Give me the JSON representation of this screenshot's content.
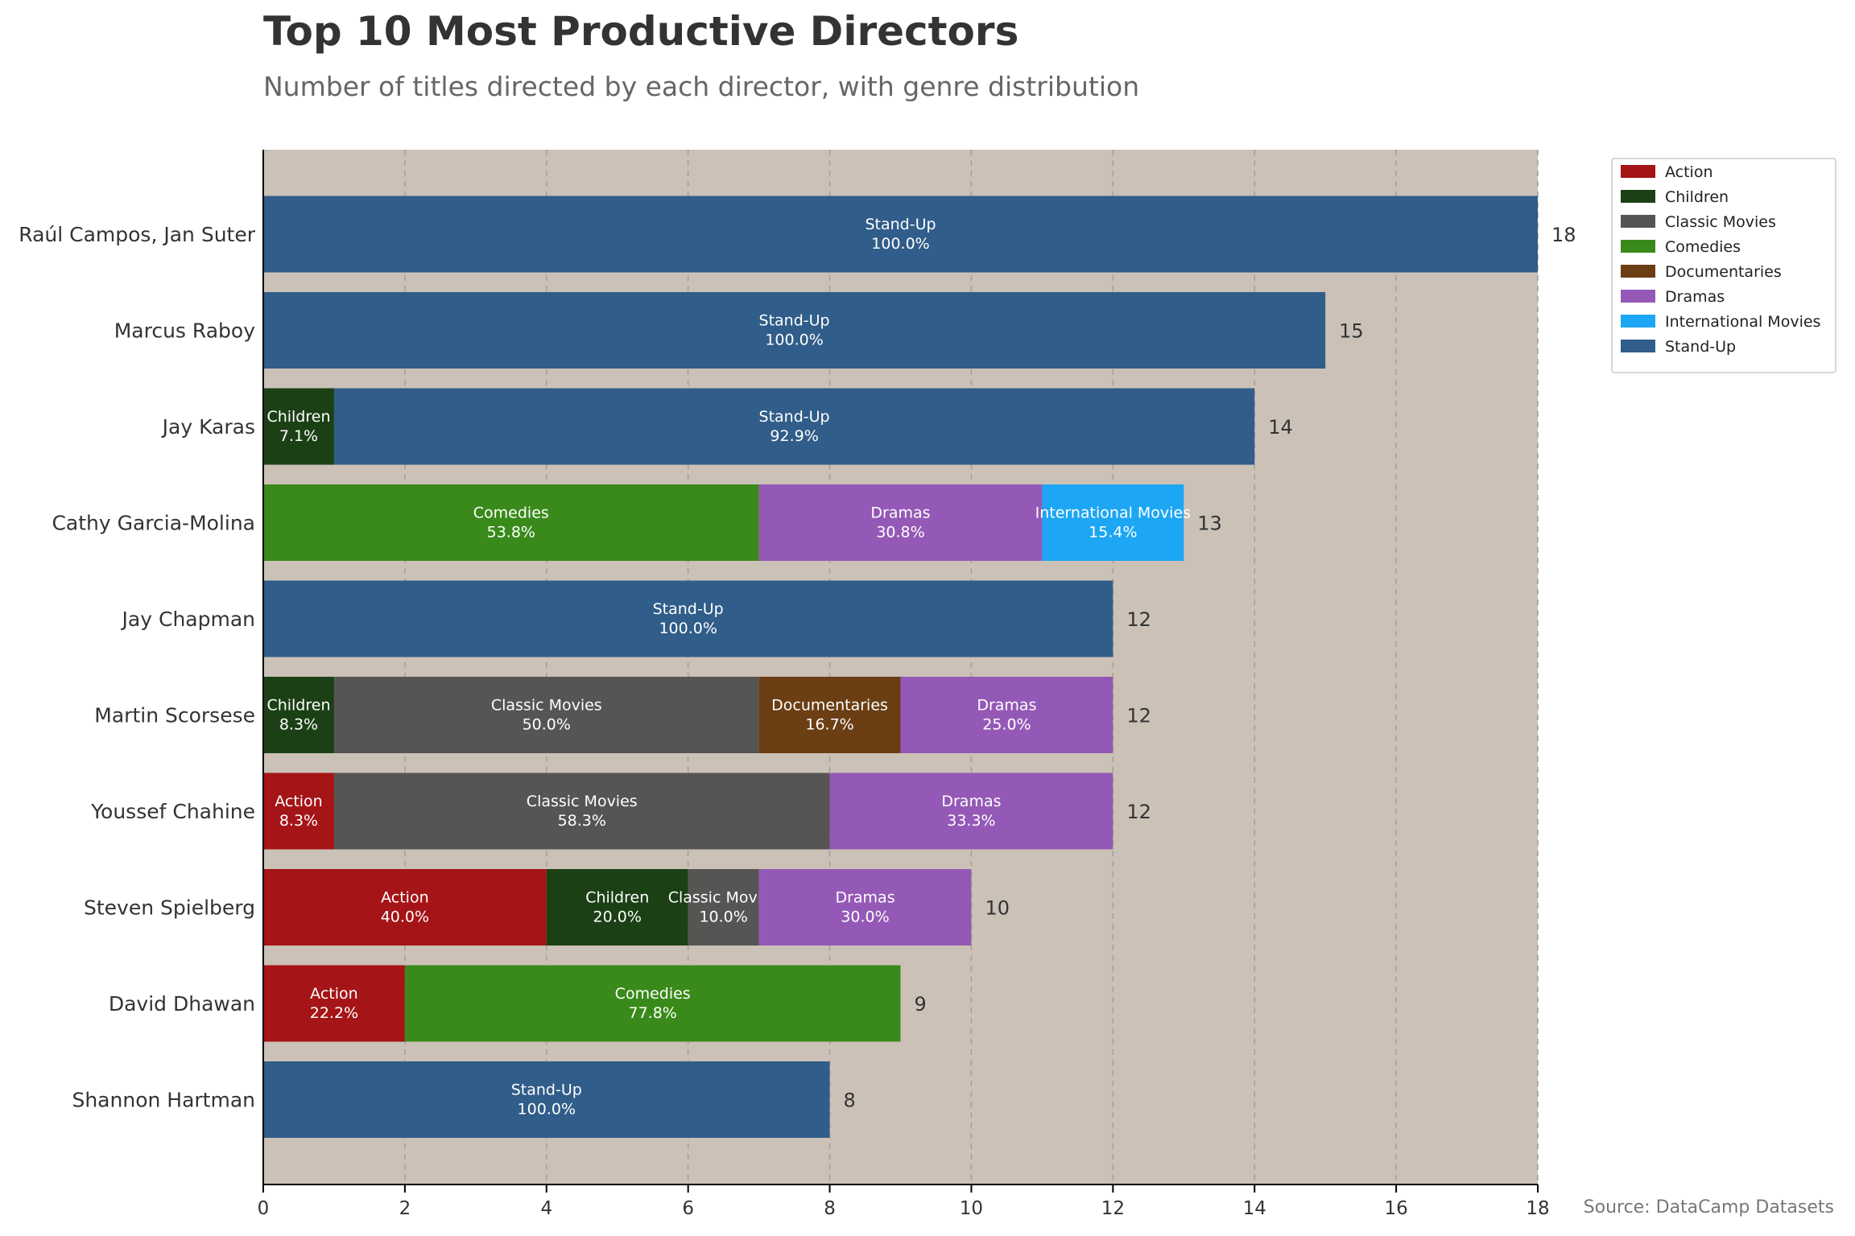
{
  "colors": {
    "plot_background": "#cbc1b7",
    "Action": "#a51416",
    "Children": "#1c4016",
    "Classic Movies": "#575553",
    "Comedies": "#398a1a",
    "Documentaries": "#6b3e14",
    "Dramas": "#9459b6",
    "International Movies": "#1da6f4",
    "Stand-Up": "#305d89"
  },
  "chart_data": {
    "type": "bar",
    "orientation": "horizontal",
    "stacked": true,
    "title": "Top 10 Most Productive Directors",
    "subtitle": "Number of titles directed by each director, with genre distribution",
    "source": "Source: DataCamp Datasets",
    "xlim": [
      0,
      18
    ],
    "xticks": [
      0,
      2,
      4,
      6,
      8,
      10,
      12,
      14,
      16,
      18
    ],
    "grid": "vertical dashed",
    "legend_placement": "top-right outside",
    "legend": [
      "Action",
      "Children",
      "Classic Movies",
      "Comedies",
      "Documentaries",
      "Dramas",
      "International Movies",
      "Stand-Up"
    ],
    "categories": [
      "Raúl Campos, Jan Suter",
      "Marcus Raboy",
      "Jay Karas",
      "Cathy Garcia-Molina",
      "Jay Chapman",
      "Martin Scorsese",
      "Youssef Chahine",
      "Steven Spielberg",
      "David Dhawan",
      "Shannon Hartman"
    ],
    "totals": [
      18,
      15,
      14,
      13,
      12,
      12,
      12,
      10,
      9,
      8
    ],
    "rows": [
      {
        "director": "Raúl Campos, Jan Suter",
        "segments": [
          {
            "genre": "Stand-Up",
            "value": 18,
            "pct": "100.0%"
          }
        ]
      },
      {
        "director": "Marcus Raboy",
        "segments": [
          {
            "genre": "Stand-Up",
            "value": 15,
            "pct": "100.0%"
          }
        ]
      },
      {
        "director": "Jay Karas",
        "segments": [
          {
            "genre": "Children",
            "value": 1,
            "pct": "7.1%"
          },
          {
            "genre": "Stand-Up",
            "value": 13,
            "pct": "92.9%"
          }
        ]
      },
      {
        "director": "Cathy Garcia-Molina",
        "segments": [
          {
            "genre": "Comedies",
            "value": 7,
            "pct": "53.8%"
          },
          {
            "genre": "Dramas",
            "value": 4,
            "pct": "30.8%"
          },
          {
            "genre": "International Movies",
            "value": 2,
            "pct": "15.4%"
          }
        ]
      },
      {
        "director": "Jay Chapman",
        "segments": [
          {
            "genre": "Stand-Up",
            "value": 12,
            "pct": "100.0%"
          }
        ]
      },
      {
        "director": "Martin Scorsese",
        "segments": [
          {
            "genre": "Children",
            "value": 1,
            "pct": "8.3%"
          },
          {
            "genre": "Classic Movies",
            "value": 6,
            "pct": "50.0%"
          },
          {
            "genre": "Documentaries",
            "value": 2,
            "pct": "16.7%"
          },
          {
            "genre": "Dramas",
            "value": 3,
            "pct": "25.0%"
          }
        ]
      },
      {
        "director": "Youssef Chahine",
        "segments": [
          {
            "genre": "Action",
            "value": 1,
            "pct": "8.3%"
          },
          {
            "genre": "Classic Movies",
            "value": 7,
            "pct": "58.3%"
          },
          {
            "genre": "Dramas",
            "value": 4,
            "pct": "33.3%"
          }
        ]
      },
      {
        "director": "Steven Spielberg",
        "segments": [
          {
            "genre": "Action",
            "value": 4,
            "pct": "40.0%"
          },
          {
            "genre": "Children",
            "value": 2,
            "pct": "20.0%"
          },
          {
            "genre": "Classic Movies",
            "value": 1,
            "pct": "10.0%"
          },
          {
            "genre": "Dramas",
            "value": 3,
            "pct": "30.0%"
          }
        ]
      },
      {
        "director": "David Dhawan",
        "segments": [
          {
            "genre": "Action",
            "value": 2,
            "pct": "22.2%"
          },
          {
            "genre": "Comedies",
            "value": 7,
            "pct": "77.8%"
          }
        ]
      },
      {
        "director": "Shannon Hartman",
        "segments": [
          {
            "genre": "Stand-Up",
            "value": 8,
            "pct": "100.0%"
          }
        ]
      }
    ]
  }
}
